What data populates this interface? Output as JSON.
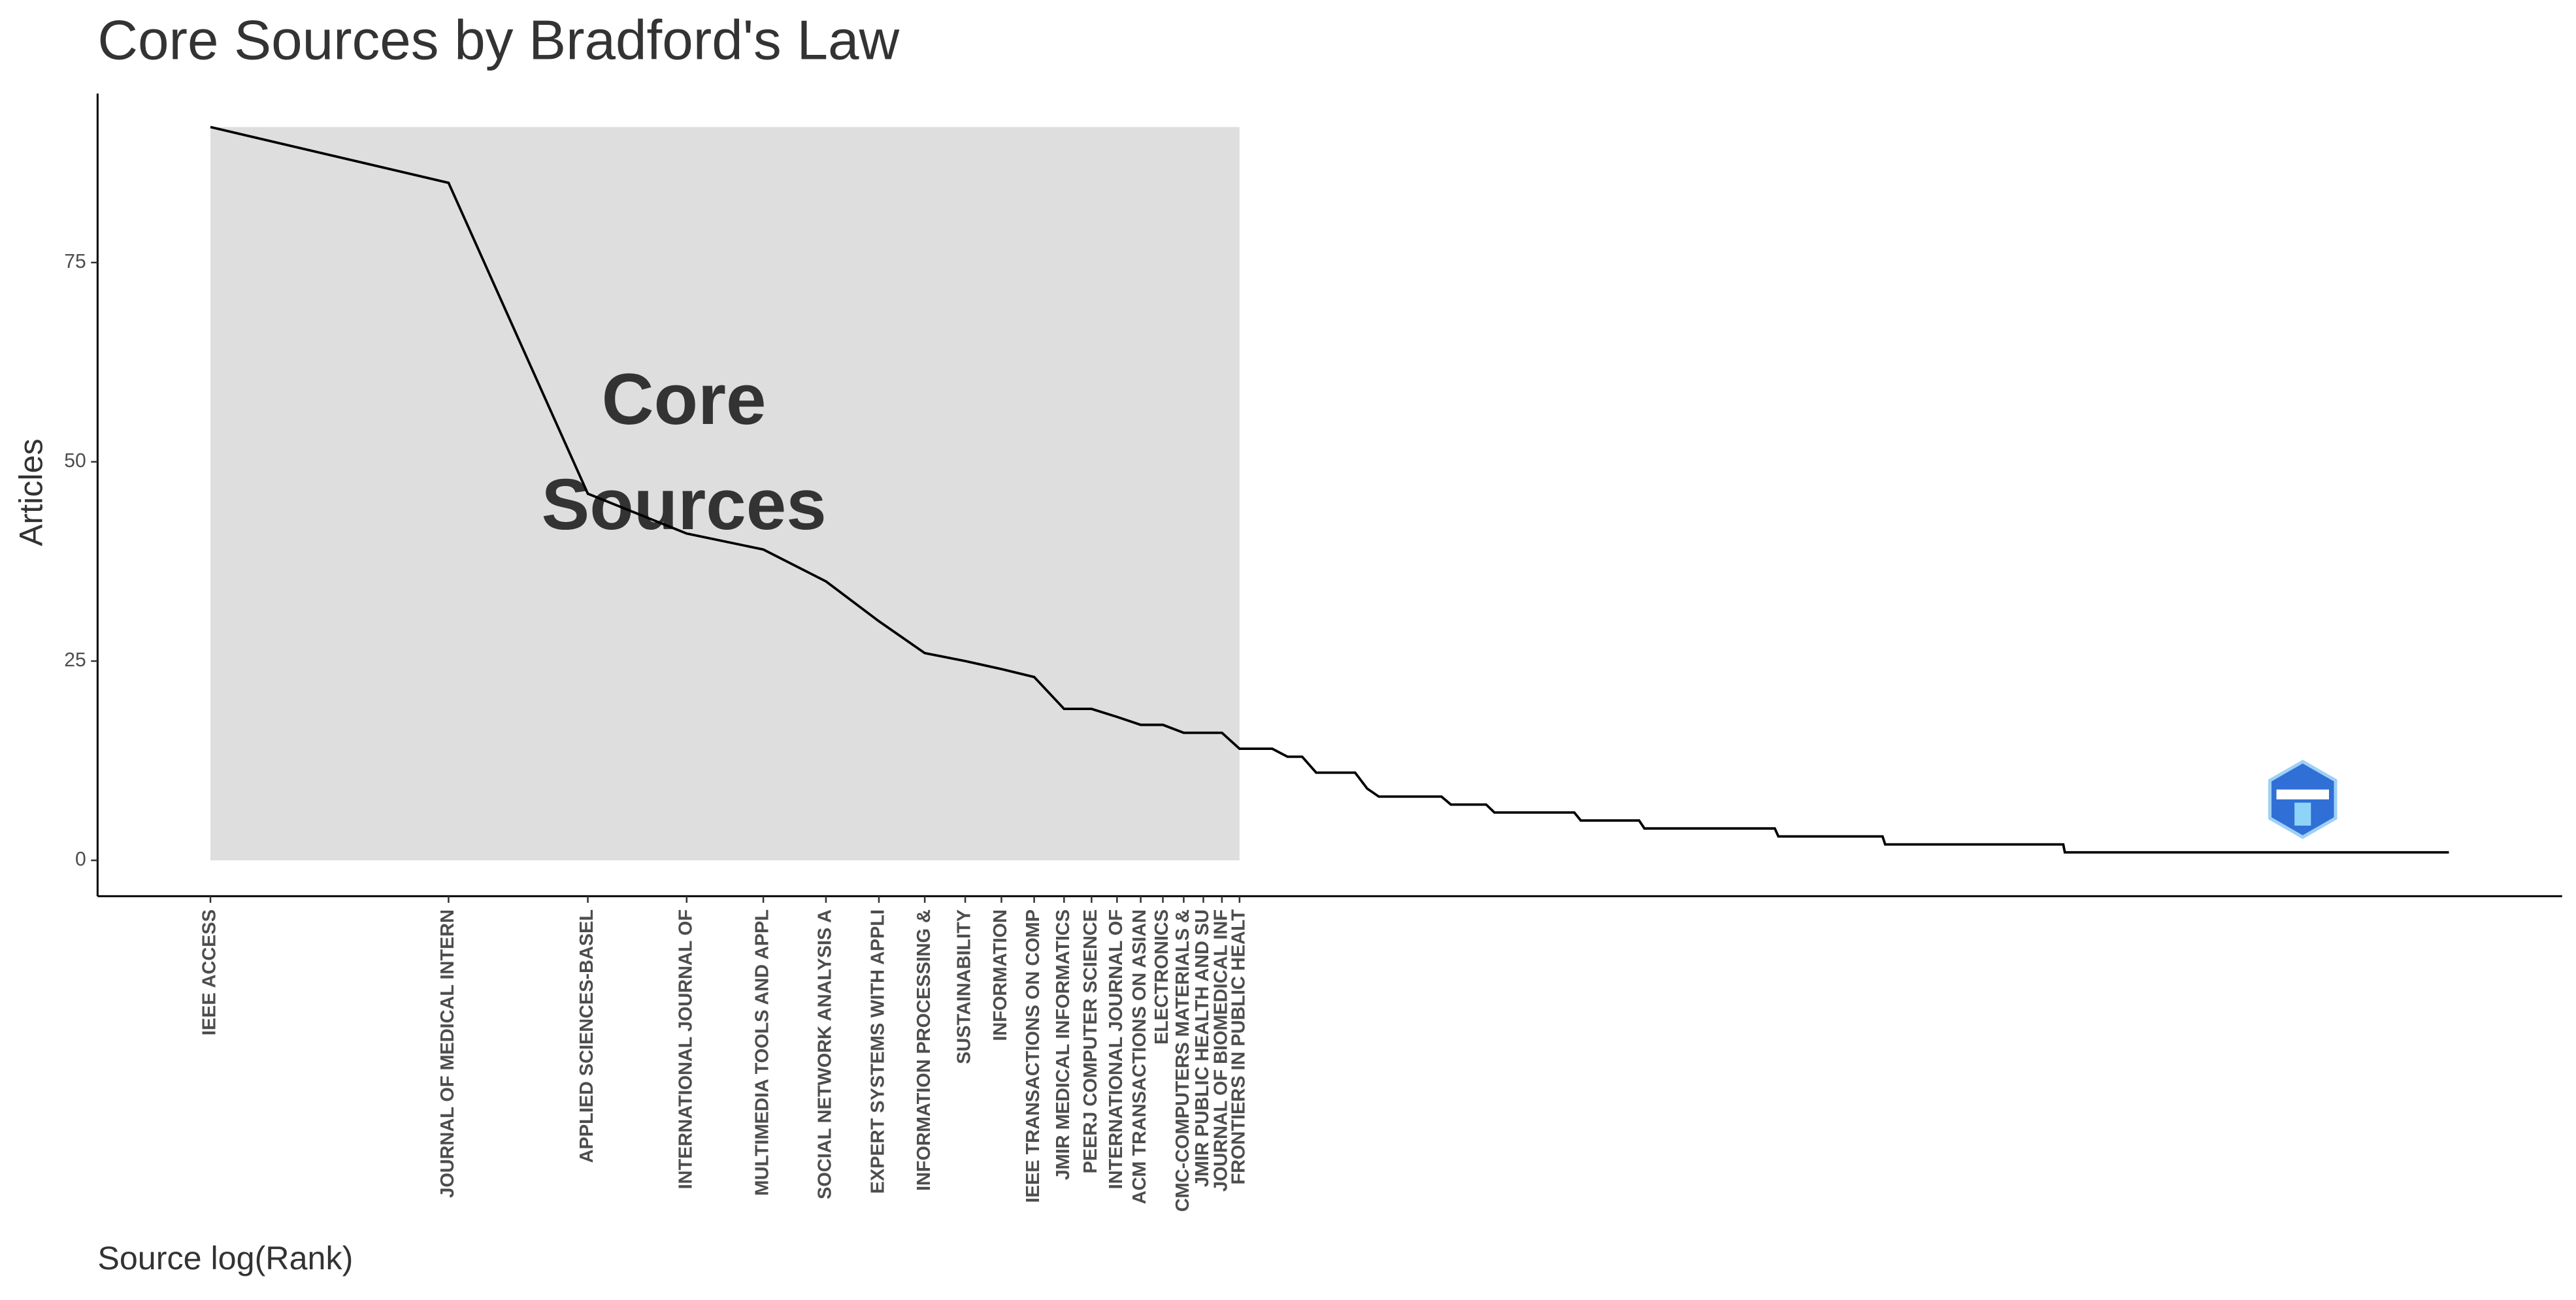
{
  "chart_data": {
    "type": "line",
    "title": "Core Sources by Bradford's Law",
    "xlabel": "Source log(Rank)",
    "ylabel": "Articles",
    "annotation": [
      "Core",
      "Sources"
    ],
    "xscale": "log",
    "xlim": [
      0.72,
      940
    ],
    "ylim": [
      -4.5,
      96.2
    ],
    "yticks": [
      0,
      25,
      50,
      75
    ],
    "xticks": [
      {
        "value": 1,
        "label": "IEEE ACCESS"
      },
      {
        "value": 2,
        "label": "JOURNAL OF MEDICAL INTERN"
      },
      {
        "value": 3,
        "label": "APPLIED SCIENCES-BASEL"
      },
      {
        "value": 4,
        "label": "INTERNATIONAL JOURNAL OF"
      },
      {
        "value": 5,
        "label": "MULTIMEDIA TOOLS AND APPL"
      },
      {
        "value": 6,
        "label": "SOCIAL NETWORK ANALYSIS A"
      },
      {
        "value": 7,
        "label": "EXPERT SYSTEMS WITH APPLI"
      },
      {
        "value": 8,
        "label": "INFORMATION PROCESSING &"
      },
      {
        "value": 9,
        "label": "SUSTAINABILITY"
      },
      {
        "value": 10,
        "label": "INFORMATION"
      },
      {
        "value": 11,
        "label": "IEEE TRANSACTIONS ON COMP"
      },
      {
        "value": 12,
        "label": "JMIR MEDICAL INFORMATICS"
      },
      {
        "value": 13,
        "label": "PEERJ COMPUTER SCIENCE"
      },
      {
        "value": 14,
        "label": "INTERNATIONAL JOURNAL OF"
      },
      {
        "value": 15,
        "label": "ACM TRANSACTIONS ON ASIAN"
      },
      {
        "value": 16,
        "label": "ELECTRONICS"
      },
      {
        "value": 17,
        "label": "CMC-COMPUTERS MATERIALS &"
      },
      {
        "value": 18,
        "label": "JMIR PUBLIC HEALTH AND SU"
      },
      {
        "value": 19,
        "label": "JOURNAL OF BIOMEDICAL INF"
      },
      {
        "value": 20,
        "label": "FRONTIERS IN PUBLIC HEALT"
      }
    ],
    "x": [
      1,
      2,
      3,
      4,
      5,
      6,
      7,
      8,
      9,
      10,
      11,
      12,
      13,
      14,
      15,
      16,
      17,
      18,
      19,
      20,
      22,
      23,
      24,
      25,
      28,
      29,
      30,
      36,
      37,
      41,
      42,
      53,
      54,
      64,
      65,
      95,
      96,
      130,
      131,
      220,
      221,
      676
    ],
    "values": [
      92,
      85,
      46,
      41,
      39,
      35,
      30,
      26,
      25,
      24,
      23,
      19,
      19,
      18,
      17,
      17,
      16,
      16,
      16,
      14,
      14,
      13,
      13,
      11,
      11,
      9,
      8,
      8,
      7,
      7,
      6,
      6,
      5,
      5,
      4,
      4,
      3,
      3,
      2,
      2,
      1,
      1
    ],
    "color": "#000000",
    "core_color": "#dedede",
    "grid": false
  }
}
